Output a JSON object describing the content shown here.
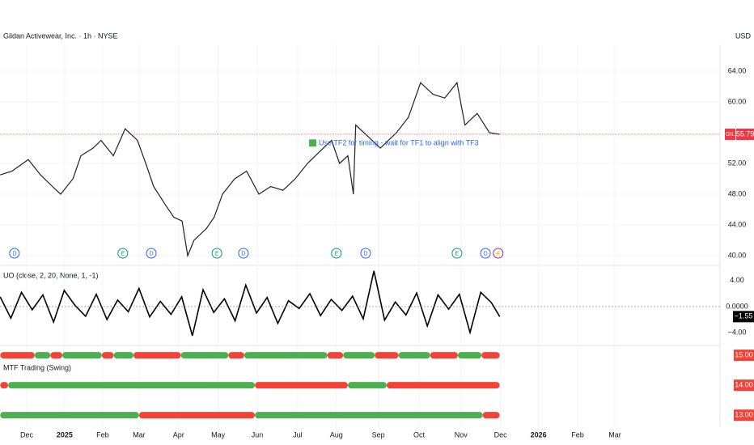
{
  "header": {
    "title": "Gildan Activewear, Inc. · 1h · NYSE",
    "currency": "USD"
  },
  "chart_data": [
    {
      "type": "line",
      "color": "#222222",
      "x": [
        -0.67,
        -0.37,
        0.04,
        0.35,
        0.65,
        0.86,
        1.17,
        1.37,
        1.68,
        1.88,
        2.19,
        2.49,
        2.8,
        3.01,
        3.21,
        3.52,
        3.72,
        3.93,
        4.07,
        4.23,
        4.54,
        4.74,
        4.95,
        5.26,
        5.56,
        5.87,
        6.17,
        6.48,
        6.79,
        7.1,
        7.4,
        7.71,
        7.91,
        8.12,
        8.26,
        8.32,
        8.63,
        8.94,
        9.35,
        9.65,
        9.96,
        10.27,
        10.57,
        10.88,
        11.08,
        11.39,
        11.7,
        11.96
      ],
      "values": [
        50.5,
        51,
        52.5,
        50.5,
        49,
        48,
        50,
        53,
        54,
        55,
        53,
        56.5,
        55,
        52,
        49,
        46.5,
        45,
        44.5,
        40,
        42,
        43.5,
        45,
        48,
        50,
        51,
        48,
        49,
        48.5,
        50,
        52,
        53.5,
        55,
        52,
        53,
        48,
        57,
        55.5,
        54,
        56,
        58,
        62.5,
        61,
        60.5,
        62.5,
        57,
        58.5,
        56,
        55.79
      ],
      "last_symbol": "GIL",
      "last_label": "55.79",
      "last_color": "#f23645",
      "ylim": [
        39.05,
        67.47
      ],
      "yticks": [
        {
          "value": 40,
          "label": "40.00"
        },
        {
          "value": 44,
          "label": "44.00"
        },
        {
          "value": 48,
          "label": "48.00"
        },
        {
          "value": 52,
          "label": "52.00"
        },
        {
          "value": 60,
          "label": "60.00"
        },
        {
          "value": 64,
          "label": "64.00"
        }
      ],
      "xlim": [
        -0.675,
        17.53
      ],
      "xticks": [
        {
          "value": 0,
          "label": "Dec"
        },
        {
          "value": 0.96,
          "label": "2025"
        },
        {
          "value": 1.92,
          "label": "Feb"
        },
        {
          "value": 2.84,
          "label": "Mar"
        },
        {
          "value": 3.84,
          "label": "Apr"
        },
        {
          "value": 4.84,
          "label": "May"
        },
        {
          "value": 5.83,
          "label": "Jun"
        },
        {
          "value": 6.85,
          "label": "Jul"
        },
        {
          "value": 7.83,
          "label": "Aug"
        },
        {
          "value": 8.89,
          "label": "Sep"
        },
        {
          "value": 9.92,
          "label": "Oct"
        },
        {
          "value": 10.98,
          "label": "Nov"
        },
        {
          "value": 11.98,
          "label": "Dec"
        },
        {
          "value": 12.94,
          "label": "2026"
        },
        {
          "value": 13.93,
          "label": "Feb"
        },
        {
          "value": 14.87,
          "label": "Mar"
        }
      ],
      "grid": true,
      "annotation": {
        "x": 7.16,
        "y": 54.6,
        "text": "Use TF2 for timing - wait for TF1 to align with TF3"
      },
      "events": [
        {
          "x": -0.31,
          "label": "D",
          "color": "#2962ff"
        },
        {
          "x": 2.43,
          "label": "E",
          "color": "#089981"
        },
        {
          "x": 3.15,
          "label": "D",
          "color": "#2962ff"
        },
        {
          "x": 4.81,
          "label": "E",
          "color": "#089981"
        },
        {
          "x": 5.48,
          "label": "D",
          "color": "#2962ff"
        },
        {
          "x": 7.83,
          "label": "E",
          "color": "#089981"
        },
        {
          "x": 8.57,
          "label": "D",
          "color": "#2962ff"
        },
        {
          "x": 10.88,
          "label": "E",
          "color": "#089981"
        },
        {
          "x": 11.6,
          "label": "D",
          "color": "#2962ff"
        },
        {
          "x": 11.92,
          "label": "⚡",
          "color": "#9c27b0"
        }
      ]
    },
    {
      "type": "line",
      "title": "UO (close, 2, 20, None, 1, -1)",
      "color": "#000000",
      "x": [
        -0.67,
        -0.4,
        -0.13,
        0.14,
        0.41,
        0.68,
        0.95,
        1.22,
        1.49,
        1.76,
        2.03,
        2.3,
        2.57,
        2.84,
        3.11,
        3.38,
        3.65,
        3.92,
        4.19,
        4.46,
        4.73,
        5.0,
        5.27,
        5.54,
        5.81,
        6.08,
        6.35,
        6.62,
        6.89,
        7.16,
        7.43,
        7.7,
        7.97,
        8.24,
        8.51,
        8.78,
        9.05,
        9.32,
        9.59,
        9.86,
        10.13,
        10.4,
        10.67,
        10.94,
        11.21,
        11.48,
        11.75,
        11.96
      ],
      "values": [
        1.5,
        -1.8,
        2.2,
        -0.5,
        1.8,
        -2.4,
        2.5,
        0.2,
        -1.5,
        1.9,
        -2.0,
        1.0,
        -0.8,
        2.8,
        -1.6,
        0.8,
        -1.2,
        1.5,
        -4.5,
        2.6,
        -0.9,
        1.2,
        -2.2,
        3.3,
        -1.0,
        1.4,
        -2.6,
        0.9,
        -0.3,
        2.0,
        -1.4,
        1.1,
        -0.6,
        1.6,
        -1.9,
        5.5,
        -2.1,
        0.7,
        -1.3,
        2.1,
        -3.0,
        1.8,
        -0.4,
        1.9,
        -4.0,
        2.2,
        0.6,
        -1.55
      ],
      "last_label": "−1.55",
      "ylim": [
        -5.75,
        6.1
      ],
      "yticks": [
        {
          "value": 4,
          "label": "4.00"
        },
        {
          "value": 0,
          "label": "0.0000"
        },
        {
          "value": -4,
          "label": "−4.00"
        }
      ]
    },
    {
      "type": "timeline",
      "title": "MTF Trading (Swing)",
      "ylim": [
        12.6,
        15.3
      ],
      "rows": [
        {
          "value": 15,
          "label": "15.00",
          "segments": [
            {
              "from": -0.67,
              "to": 0.2,
              "color": "#f44336"
            },
            {
              "from": 0.2,
              "to": 0.6,
              "color": "#4caf50"
            },
            {
              "from": 0.6,
              "to": 0.9,
              "color": "#f44336"
            },
            {
              "from": 0.9,
              "to": 1.9,
              "color": "#4caf50"
            },
            {
              "from": 1.9,
              "to": 2.2,
              "color": "#f44336"
            },
            {
              "from": 2.2,
              "to": 2.7,
              "color": "#4caf50"
            },
            {
              "from": 2.7,
              "to": 3.9,
              "color": "#f44336"
            },
            {
              "from": 3.9,
              "to": 5.1,
              "color": "#4caf50"
            },
            {
              "from": 5.1,
              "to": 5.5,
              "color": "#f44336"
            },
            {
              "from": 5.5,
              "to": 7.6,
              "color": "#4caf50"
            },
            {
              "from": 7.6,
              "to": 8.0,
              "color": "#f44336"
            },
            {
              "from": 8.0,
              "to": 8.8,
              "color": "#4caf50"
            },
            {
              "from": 8.8,
              "to": 9.4,
              "color": "#f44336"
            },
            {
              "from": 9.4,
              "to": 10.2,
              "color": "#4caf50"
            },
            {
              "from": 10.2,
              "to": 10.9,
              "color": "#f44336"
            },
            {
              "from": 10.9,
              "to": 11.5,
              "color": "#4caf50"
            },
            {
              "from": 11.5,
              "to": 11.96,
              "color": "#f44336"
            }
          ]
        },
        {
          "value": 14,
          "label": "14.00",
          "segments": [
            {
              "from": -0.67,
              "to": -0.47,
              "color": "#f44336"
            },
            {
              "from": -0.47,
              "to": 5.77,
              "color": "#4caf50"
            },
            {
              "from": 5.77,
              "to": 8.12,
              "color": "#f44336"
            },
            {
              "from": 8.12,
              "to": 9.1,
              "color": "#4caf50"
            },
            {
              "from": 9.1,
              "to": 11.96,
              "color": "#f44336"
            }
          ]
        },
        {
          "value": 13,
          "label": "13.00",
          "segments": [
            {
              "from": -0.67,
              "to": 2.84,
              "color": "#4caf50"
            },
            {
              "from": 2.84,
              "to": 5.77,
              "color": "#f44336"
            },
            {
              "from": 5.77,
              "to": 11.53,
              "color": "#4caf50"
            },
            {
              "from": 11.53,
              "to": 11.96,
              "color": "#f44336"
            }
          ]
        }
      ]
    }
  ]
}
